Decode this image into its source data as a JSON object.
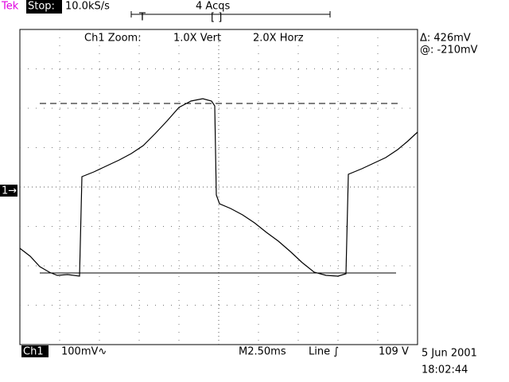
{
  "header": {
    "brand": "Tek",
    "status": "Stop:",
    "sample_rate": "10.0kS/s",
    "acquisitions": "4 Acqs",
    "trigger_marker": "T",
    "window_marker": "[ ]"
  },
  "zoom": {
    "label": "Ch1 Zoom:",
    "vert": "1.0X Vert",
    "horz": "2.0X Horz"
  },
  "cursors": {
    "delta": "Δ: 426mV",
    "at": "@: -210mV"
  },
  "channel_marker": "1→",
  "footer": {
    "channel": "Ch1",
    "scale": "100mV∿",
    "timebase": "M2.50ms",
    "trigger": "Line ∫",
    "level": "109 V",
    "date": "5 Jun 2001",
    "time": "18:02:44"
  }
}
